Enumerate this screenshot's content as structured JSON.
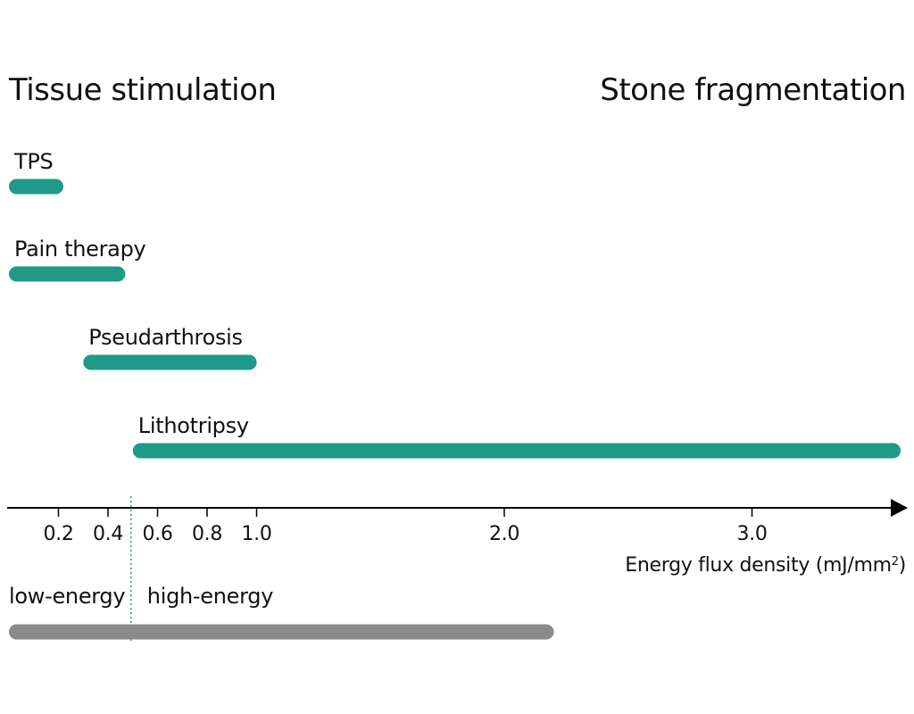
{
  "chart_data": {
    "type": "range-bar",
    "header_left": "Tissue stimulation",
    "header_right": "Stone fragmentation",
    "xlabel": "Energy flux density (mJ/mm",
    "xlabel_sup": "2",
    "xlabel_close": ")",
    "xlim": [
      0.0,
      3.6
    ],
    "x_ticks": [
      0.2,
      0.4,
      0.6,
      0.8,
      1.0,
      2.0,
      3.0
    ],
    "x_tick_labels": [
      "0.2",
      "0.4",
      "0.6",
      "0.8",
      "1.0",
      "2.0",
      "3.0"
    ],
    "bar_color": "#1f9a87",
    "series": [
      {
        "name": "TPS",
        "start": 0.0,
        "end": 0.22
      },
      {
        "name": "Pain therapy",
        "start": 0.0,
        "end": 0.47
      },
      {
        "name": "Pseudarthrosis",
        "start": 0.3,
        "end": 1.0
      },
      {
        "name": "Lithotripsy",
        "start": 0.5,
        "end": 3.6
      }
    ],
    "threshold": 0.5,
    "zones": {
      "low_label": "low-energy",
      "high_label": "high-energy",
      "bar_start": 0.0,
      "bar_end": 2.2,
      "bar_color": "#8a8a8a"
    },
    "axis_color": "#000000",
    "threshold_color": "#1f9a87"
  }
}
